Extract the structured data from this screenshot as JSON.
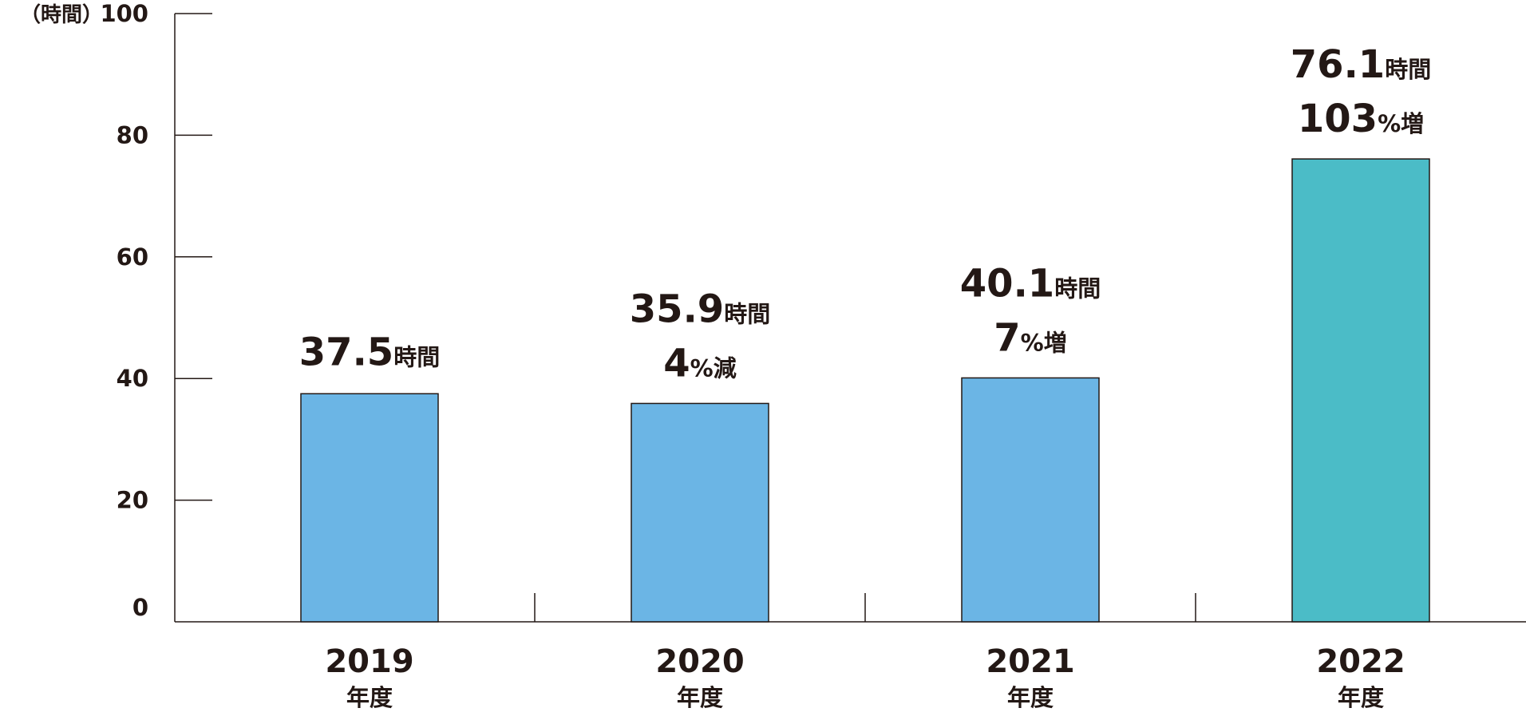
{
  "chart_data": {
    "type": "bar",
    "ylabel": "（時間）",
    "ylim": [
      0,
      100
    ],
    "yticks": [
      0,
      20,
      40,
      60,
      80,
      100
    ],
    "categories": [
      {
        "year": "2019",
        "suffix": "年度"
      },
      {
        "year": "2020",
        "suffix": "年度"
      },
      {
        "year": "2021",
        "suffix": "年度"
      },
      {
        "year": "2022",
        "suffix": "年度"
      }
    ],
    "series": [
      {
        "values": [
          37.5,
          35.9,
          40.1,
          76.1
        ],
        "colors": [
          "#6bb5e5",
          "#6bb5e5",
          "#6bb5e5",
          "#4bbcc7"
        ]
      }
    ],
    "data_labels": [
      {
        "value": "37.5",
        "unit": "時間",
        "change": "",
        "change_pct": "",
        "change_word": ""
      },
      {
        "value": "35.9",
        "unit": "時間",
        "change": "4",
        "change_pct": "%",
        "change_word": "減"
      },
      {
        "value": "40.1",
        "unit": "時間",
        "change": "7",
        "change_pct": "%",
        "change_word": "増"
      },
      {
        "value": "76.1",
        "unit": "時間",
        "change": "103",
        "change_pct": "%",
        "change_word": "増"
      }
    ],
    "grid": false,
    "legend": "none"
  }
}
